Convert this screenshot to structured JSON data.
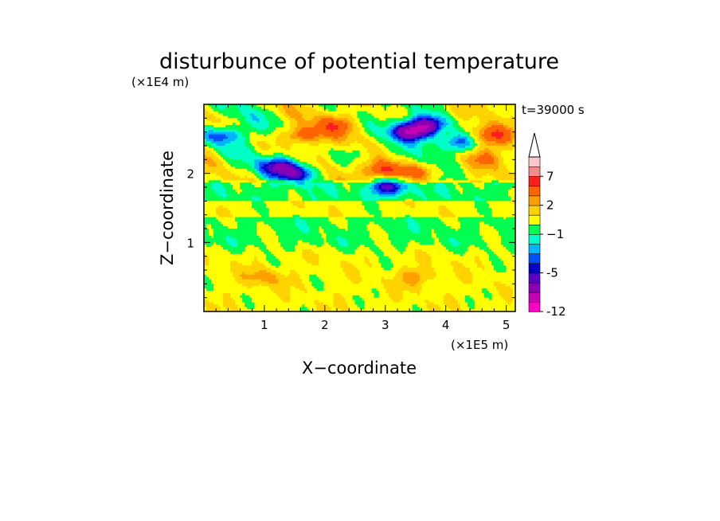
{
  "chart_data": {
    "type": "heatmap",
    "title": "disturbunce of potential temperature",
    "xlabel": "X−coordinate",
    "ylabel": "Z−coordinate",
    "x_unit": "(×1E5 m)",
    "y_unit": "(×1E4 m)",
    "time_label": "t=39000 s",
    "xlim": [
      0,
      5.15
    ],
    "ylim": [
      0,
      3.0
    ],
    "x_ticks": [
      1,
      2,
      3,
      4,
      5
    ],
    "x_tick_labels": [
      "1",
      "2",
      "3",
      "4",
      "5"
    ],
    "y_ticks": [
      1,
      2
    ],
    "y_tick_labels": [
      "1",
      "2"
    ],
    "colorbar": {
      "levels": [
        -12,
        -10,
        -8,
        -6,
        -5,
        -4,
        -3,
        -2,
        -1,
        0,
        1,
        2,
        3,
        5,
        7,
        9,
        11
      ],
      "tick_labels": [
        "-12",
        "-5",
        "−1",
        "2",
        "7"
      ],
      "tick_values": [
        -12,
        -5,
        -1,
        2,
        7
      ],
      "colors": [
        "#ff00c8",
        "#c800b4",
        "#8c00b4",
        "#5a00c8",
        "#0000c8",
        "#0050ff",
        "#00b4ff",
        "#00ffc8",
        "#00ff50",
        "#ffff00",
        "#ffd200",
        "#ffa000",
        "#ff6400",
        "#ff1e1e",
        "#f08c8c",
        "#ffc8c8"
      ],
      "extend": "max"
    },
    "features": [
      {
        "x": 0.3,
        "z": 2.55,
        "value": -4
      },
      {
        "x": 1.6,
        "z": 2.0,
        "value": -5
      },
      {
        "x": 1.25,
        "z": 2.1,
        "value": -5
      },
      {
        "x": 3.4,
        "z": 2.6,
        "value": -7
      },
      {
        "x": 3.7,
        "z": 2.7,
        "value": -6
      },
      {
        "x": 4.2,
        "z": 2.45,
        "value": -4
      },
      {
        "x": 3.05,
        "z": 1.8,
        "value": -5
      },
      {
        "x": 1.6,
        "z": 2.55,
        "value": 4
      },
      {
        "x": 3.0,
        "z": 2.05,
        "value": 5
      },
      {
        "x": 2.2,
        "z": 2.7,
        "value": 3
      },
      {
        "x": 4.8,
        "z": 2.55,
        "value": 4
      },
      {
        "x": 3.5,
        "z": 2.0,
        "value": 3
      },
      {
        "x": 4.6,
        "z": 2.2,
        "value": 2
      },
      {
        "x": 2.5,
        "z": 2.3,
        "value": -1
      },
      {
        "x": 1.0,
        "z": 0.5,
        "value": 2
      },
      {
        "x": 3.5,
        "z": 0.5,
        "value": 2
      }
    ]
  }
}
